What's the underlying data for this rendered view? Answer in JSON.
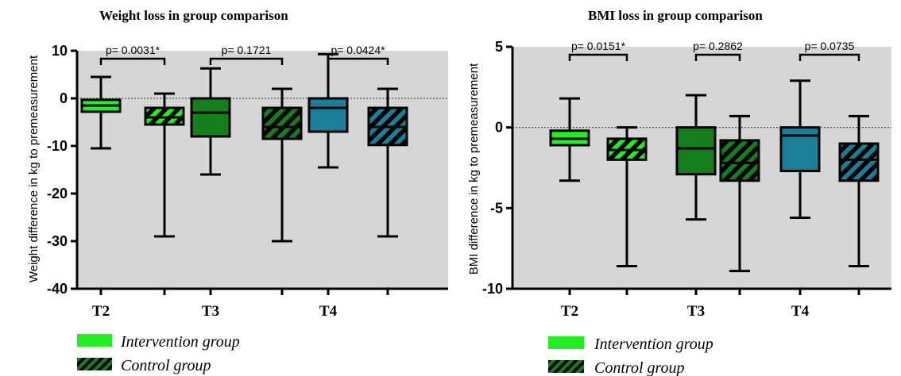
{
  "colors": {
    "T2": "#22ee22",
    "T3": "#15801b",
    "T4": "#1a7f98",
    "plot_bg": "#d6d6d6",
    "axis": "#000000",
    "zero_line": "#555555"
  },
  "legend": {
    "items": [
      {
        "label": "Intervention group",
        "pattern": "solid"
      },
      {
        "label": "Control group",
        "pattern": "hatched"
      }
    ]
  },
  "chart_data": [
    {
      "type": "box",
      "title": "Weight loss in group comparison",
      "ylabel": "Weight difference in kg to premeasurement",
      "xlabel": "",
      "ylim": [
        -40,
        10
      ],
      "yticks": [
        -40,
        -30,
        -20,
        -10,
        0,
        10
      ],
      "categories": [
        "T2",
        "T3",
        "T4"
      ],
      "reference_line": 0,
      "series": [
        {
          "name": "Intervention group",
          "boxes": [
            {
              "category": "T2",
              "min": -10.5,
              "q1": -2.8,
              "median": -1.5,
              "q3": -0.3,
              "max": 4.5
            },
            {
              "category": "T3",
              "min": -16,
              "q1": -8,
              "median": -3,
              "q3": 0,
              "max": 6.3
            },
            {
              "category": "T4",
              "min": -14.5,
              "q1": -7,
              "median": -2,
              "q3": 0,
              "max": 9.3
            }
          ]
        },
        {
          "name": "Control group",
          "boxes": [
            {
              "category": "T2",
              "min": -29,
              "q1": -5.5,
              "median": -4,
              "q3": -2,
              "max": 1
            },
            {
              "category": "T3",
              "min": -30,
              "q1": -8.5,
              "median": -6,
              "q3": -2,
              "max": 2
            },
            {
              "category": "T4",
              "min": -29,
              "q1": -9.8,
              "median": -6,
              "q3": -2,
              "max": 2
            }
          ]
        }
      ],
      "annotations": [
        {
          "category": "T2",
          "text": "p= 0.0031*"
        },
        {
          "category": "T3",
          "text": "p= 0.1721"
        },
        {
          "category": "T4",
          "text": "p= 0.0424*"
        }
      ]
    },
    {
      "type": "box",
      "title": "BMI loss in group comparison",
      "ylabel": "BMI difference in kg to premeasurement",
      "xlabel": "",
      "ylim": [
        -10,
        5
      ],
      "yticks": [
        -10,
        -5,
        0,
        5
      ],
      "categories": [
        "T2",
        "T3",
        "T4"
      ],
      "reference_line": 0,
      "series": [
        {
          "name": "Intervention group",
          "boxes": [
            {
              "category": "T2",
              "min": -3.3,
              "q1": -1.1,
              "median": -0.7,
              "q3": -0.2,
              "max": 1.8
            },
            {
              "category": "T3",
              "min": -5.7,
              "q1": -2.9,
              "median": -1.3,
              "q3": 0,
              "max": 2
            },
            {
              "category": "T4",
              "min": -5.6,
              "q1": -2.7,
              "median": -0.5,
              "q3": 0,
              "max": 2.9
            }
          ]
        },
        {
          "name": "Control group",
          "boxes": [
            {
              "category": "T2",
              "min": -8.6,
              "q1": -2.0,
              "median": -1.4,
              "q3": -0.7,
              "max": 0
            },
            {
              "category": "T3",
              "min": -8.9,
              "q1": -3.3,
              "median": -2.2,
              "q3": -0.8,
              "max": 0.7
            },
            {
              "category": "T4",
              "min": -8.6,
              "q1": -3.3,
              "median": -2.0,
              "q3": -1.0,
              "max": 0.7
            }
          ]
        }
      ],
      "annotations": [
        {
          "category": "T2",
          "text": "p= 0.0151*"
        },
        {
          "category": "T3",
          "text": "p= 0.2862"
        },
        {
          "category": "T4",
          "text": "p= 0.0735"
        }
      ]
    }
  ]
}
